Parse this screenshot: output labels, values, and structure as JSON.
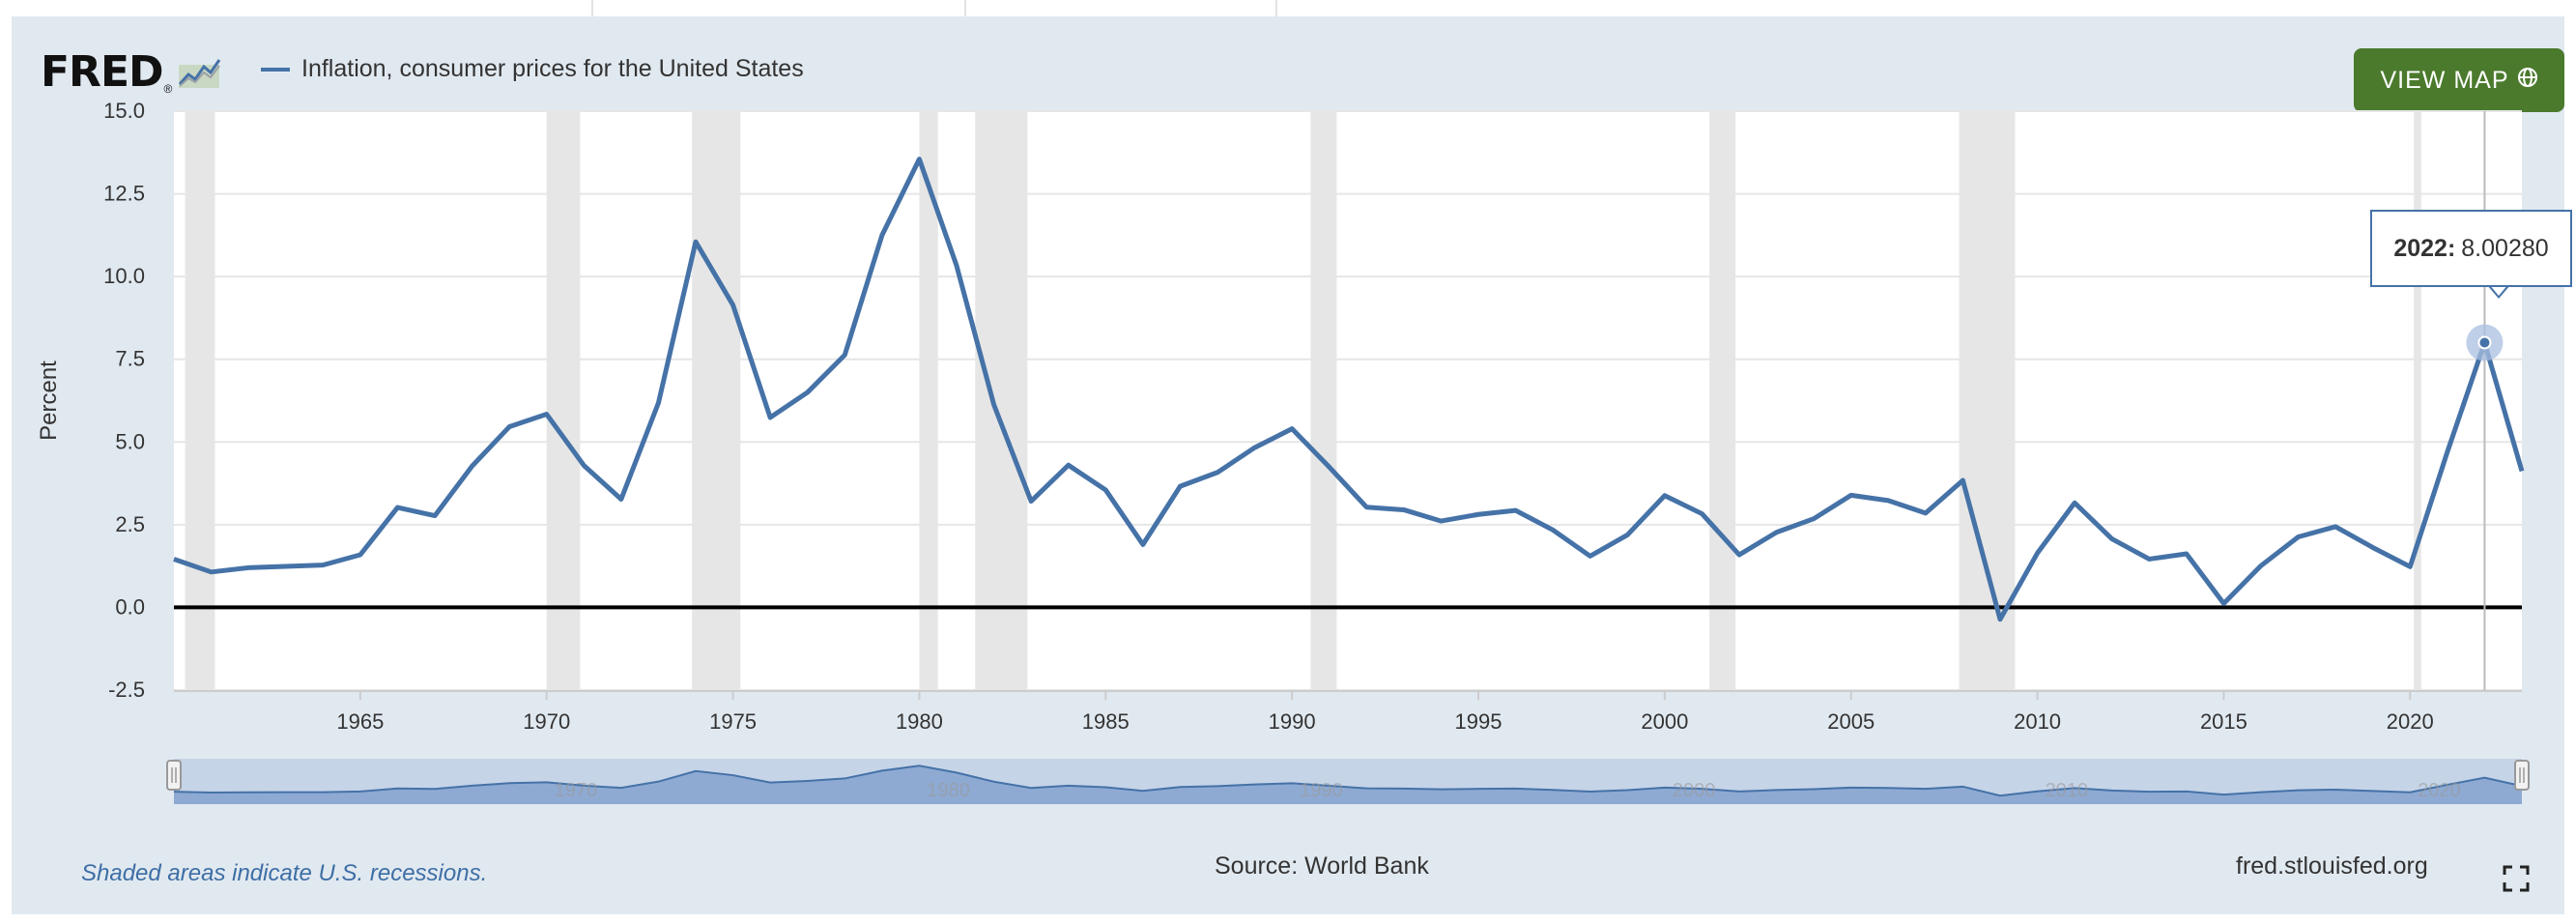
{
  "header": {
    "logo_text": "FRED",
    "logo_reg": "®",
    "legend_label": "Inflation, consumer prices for the United States",
    "view_map_label": "VIEW MAP"
  },
  "footer": {
    "recession_note": "Shaded areas indicate U.S. recessions.",
    "source": "Source: World Bank",
    "site": "fred.stlouisfed.org"
  },
  "tooltip": {
    "year": "2022:",
    "value": "8.00280"
  },
  "colors": {
    "series": "#4572a7",
    "recession": "#e6e6e6",
    "view_map_bg": "#4b7a2d",
    "frame_bg": "#e1e9f0"
  },
  "icons": [
    "fred-chart-icon",
    "globe-icon",
    "fullscreen-icon"
  ],
  "chart_data": {
    "type": "line",
    "title": "",
    "xlabel": "",
    "ylabel": "Percent",
    "xlim": [
      1960,
      2023
    ],
    "ylim": [
      -2.5,
      15.0
    ],
    "yticks": [
      "15.0",
      "12.5",
      "10.0",
      "7.5",
      "5.0",
      "2.5",
      "0.0",
      "-2.5"
    ],
    "xticks": [
      "1965",
      "1970",
      "1975",
      "1980",
      "1985",
      "1990",
      "1995",
      "2000",
      "2005",
      "2010",
      "2015",
      "2020"
    ],
    "navigator_labels": [
      "1970",
      "1980",
      "1990",
      "2000",
      "2010",
      "2020"
    ],
    "recessions": [
      [
        1960.3,
        1961.1
      ],
      [
        1970.0,
        1970.9
      ],
      [
        1973.9,
        1975.2
      ],
      [
        1980.0,
        1980.5
      ],
      [
        1981.5,
        1982.9
      ],
      [
        1990.5,
        1991.2
      ],
      [
        2001.2,
        2001.9
      ],
      [
        2007.9,
        2009.4
      ],
      [
        2020.1,
        2020.3
      ]
    ],
    "series": [
      {
        "name": "Inflation, consumer prices for the United States",
        "x": [
          1960,
          1961,
          1962,
          1963,
          1964,
          1965,
          1966,
          1967,
          1968,
          1969,
          1970,
          1971,
          1972,
          1973,
          1974,
          1975,
          1976,
          1977,
          1978,
          1979,
          1980,
          1981,
          1982,
          1983,
          1984,
          1985,
          1986,
          1987,
          1988,
          1989,
          1990,
          1991,
          1992,
          1993,
          1994,
          1995,
          1996,
          1997,
          1998,
          1999,
          2000,
          2001,
          2002,
          2003,
          2004,
          2005,
          2006,
          2007,
          2008,
          2009,
          2010,
          2011,
          2012,
          2013,
          2014,
          2015,
          2016,
          2017,
          2018,
          2019,
          2020,
          2021,
          2022,
          2023
        ],
        "y": [
          1.46,
          1.07,
          1.2,
          1.24,
          1.28,
          1.59,
          3.02,
          2.77,
          4.27,
          5.46,
          5.84,
          4.29,
          3.27,
          6.18,
          11.05,
          9.14,
          5.74,
          6.5,
          7.63,
          11.25,
          13.55,
          10.33,
          6.13,
          3.21,
          4.3,
          3.55,
          1.9,
          3.66,
          4.08,
          4.83,
          5.4,
          4.24,
          3.03,
          2.95,
          2.61,
          2.81,
          2.93,
          2.34,
          1.55,
          2.19,
          3.38,
          2.83,
          1.59,
          2.27,
          2.68,
          3.39,
          3.23,
          2.85,
          3.84,
          -0.36,
          1.64,
          3.16,
          2.07,
          1.46,
          1.62,
          0.12,
          1.26,
          2.13,
          2.44,
          1.81,
          1.23,
          4.7,
          8.0,
          4.12
        ]
      }
    ],
    "highlight": {
      "x": 2022,
      "y": 8.0028
    },
    "zero_line": 0.0
  }
}
